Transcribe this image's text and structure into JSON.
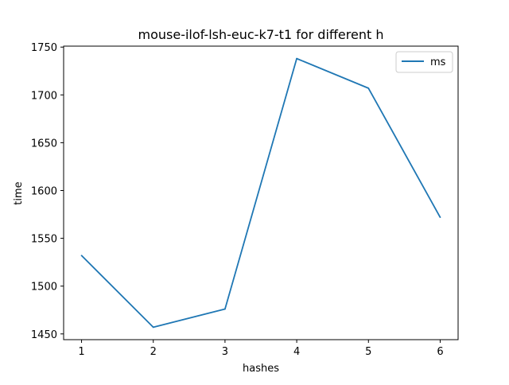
{
  "chart_data": {
    "type": "line",
    "title": "mouse-ilof-lsh-euc-k7-t1 for different h",
    "xlabel": "hashes",
    "ylabel": "time",
    "x": [
      1,
      2,
      3,
      4,
      5,
      6
    ],
    "series": [
      {
        "name": "ms",
        "values": [
          1532,
          1457,
          1476,
          1738,
          1707,
          1572
        ],
        "color": "#1f77b4"
      }
    ],
    "xlim": [
      0.75,
      6.25
    ],
    "ylim": [
      1444,
      1751
    ],
    "xticks": [
      1,
      2,
      3,
      4,
      5,
      6
    ],
    "yticks": [
      1450,
      1500,
      1550,
      1600,
      1650,
      1700,
      1750
    ],
    "grid": false,
    "legend_position": "top-right"
  }
}
